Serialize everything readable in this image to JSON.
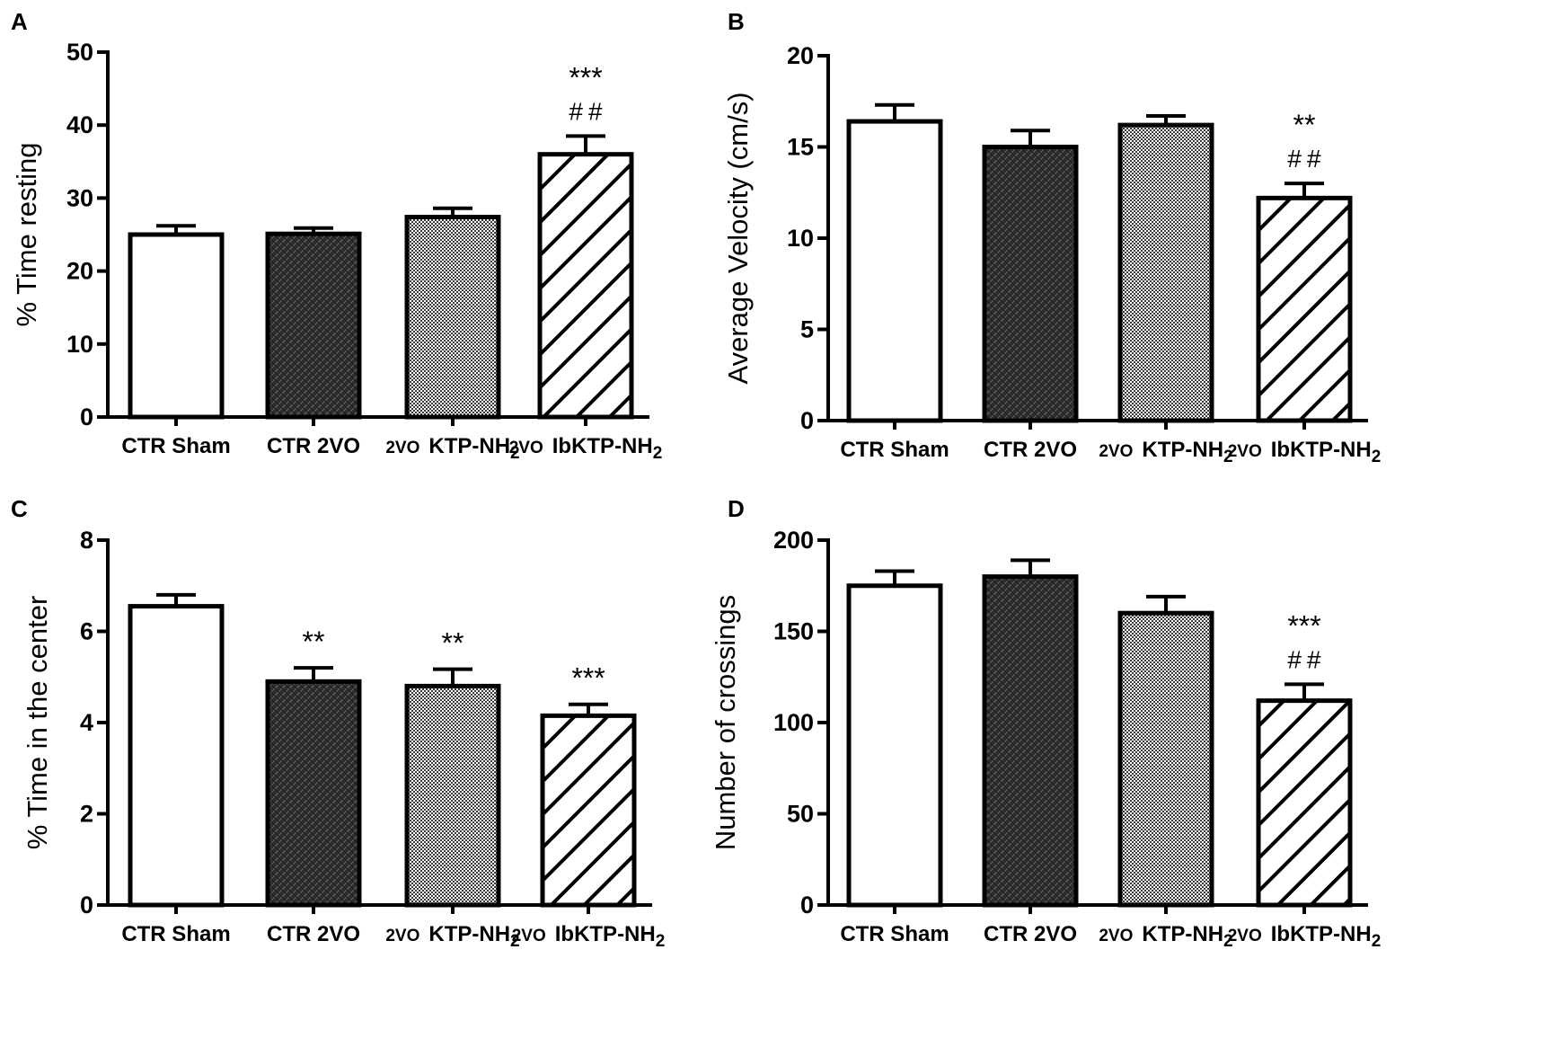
{
  "chart_data": [
    {
      "panel": "A",
      "type": "bar",
      "ylabel": "% Time resting",
      "ylim": [
        0,
        50
      ],
      "yticks": [
        0,
        10,
        20,
        30,
        40,
        50
      ],
      "categories": [
        {
          "prefix": "CTR Sham"
        },
        {
          "prefix": "CTR 2VO"
        },
        {
          "prefix": "2VO",
          "main": "KTP-NH",
          "sub": "2"
        },
        {
          "prefix": "2VO",
          "main": "IbKTP-NH",
          "sub": "2"
        }
      ],
      "values": [
        25.0,
        25.1,
        27.4,
        36.0
      ],
      "errors": [
        1.2,
        0.8,
        1.2,
        2.5
      ],
      "patterns": [
        "white",
        "dark-weave",
        "checker",
        "diagonal"
      ],
      "annotations": [
        {
          "index": 3,
          "lines": [
            "***",
            "##"
          ]
        }
      ]
    },
    {
      "panel": "B",
      "type": "bar",
      "ylabel": "Average Velocity (cm/s)",
      "ylim": [
        0,
        20
      ],
      "yticks": [
        0,
        5,
        10,
        15,
        20
      ],
      "categories": [
        {
          "prefix": "CTR Sham"
        },
        {
          "prefix": "CTR 2VO"
        },
        {
          "prefix": "2VO",
          "main": "KTP-NH",
          "sub": "2"
        },
        {
          "prefix": "2VO",
          "main": "IbKTP-NH",
          "sub": "2"
        }
      ],
      "values": [
        16.4,
        15.0,
        16.2,
        12.2
      ],
      "errors": [
        0.9,
        0.9,
        0.5,
        0.8
      ],
      "patterns": [
        "white",
        "dark-weave",
        "checker",
        "diagonal"
      ],
      "annotations": [
        {
          "index": 3,
          "lines": [
            "**",
            "##"
          ]
        }
      ]
    },
    {
      "panel": "C",
      "type": "bar",
      "ylabel": "% Time in the center",
      "ylim": [
        0,
        8
      ],
      "yticks": [
        0,
        2,
        4,
        6,
        8
      ],
      "categories": [
        {
          "prefix": "CTR Sham"
        },
        {
          "prefix": "CTR 2VO"
        },
        {
          "prefix": "2VO",
          "main": "KTP-NH",
          "sub": "2"
        },
        {
          "prefix": "2VO",
          "main": "IbKTP-NH",
          "sub": "2"
        }
      ],
      "values": [
        6.55,
        4.9,
        4.8,
        4.15
      ],
      "errors": [
        0.25,
        0.3,
        0.37,
        0.25
      ],
      "patterns": [
        "white",
        "dark-weave",
        "checker",
        "diagonal"
      ],
      "annotations": [
        {
          "index": 1,
          "lines": [
            "**"
          ]
        },
        {
          "index": 2,
          "lines": [
            "**"
          ]
        },
        {
          "index": 3,
          "lines": [
            "***"
          ]
        }
      ]
    },
    {
      "panel": "D",
      "type": "bar",
      "ylabel": "Number of crossings",
      "ylim": [
        0,
        200
      ],
      "yticks": [
        0,
        50,
        100,
        150,
        200
      ],
      "categories": [
        {
          "prefix": "CTR Sham"
        },
        {
          "prefix": "CTR 2VO"
        },
        {
          "prefix": "2VO",
          "main": "KTP-NH",
          "sub": "2"
        },
        {
          "prefix": "2VO",
          "main": "IbKTP-NH",
          "sub": "2"
        }
      ],
      "values": [
        175,
        180,
        160,
        112
      ],
      "errors": [
        8,
        9,
        9,
        9
      ],
      "patterns": [
        "white",
        "dark-weave",
        "checker",
        "diagonal"
      ],
      "annotations": [
        {
          "index": 3,
          "lines": [
            "***",
            "##"
          ]
        }
      ]
    }
  ]
}
